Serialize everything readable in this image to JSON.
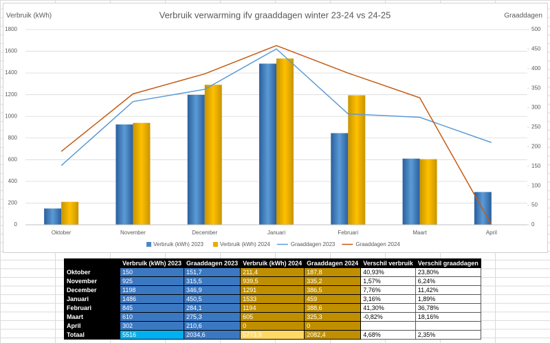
{
  "chart_data": {
    "type": "bar-line",
    "title": "Verbruik verwarming ifv graaddagen winter 23-24 vs 24-25",
    "y_label": "Verbruik (kWh)",
    "y2_label": "Graaddagen",
    "categories": [
      "Oktober",
      "November",
      "December",
      "Januari",
      "Februari",
      "Maart",
      "April"
    ],
    "series": [
      {
        "name": "Verbruik (kWh) 2023",
        "kind": "bar",
        "color": "#4a88c8",
        "values": [
          150,
          925,
          1198,
          1486,
          845,
          610,
          302
        ]
      },
      {
        "name": "Verbruik (kWh) 2024",
        "kind": "bar",
        "color": "#e8ad00",
        "values": [
          211.4,
          939.5,
          1291,
          1533,
          1194,
          605,
          0
        ]
      },
      {
        "name": "Graaddagen 2023",
        "kind": "line",
        "axis": "y2",
        "color": "#5b9bd5",
        "values": [
          151.7,
          315.5,
          346.9,
          450.5,
          284.1,
          275.3,
          210.6
        ]
      },
      {
        "name": "Graaddagen 2024",
        "kind": "line",
        "axis": "y2",
        "color": "#c55a11",
        "values": [
          187.8,
          335.2,
          386.5,
          459,
          388.6,
          325.3,
          0
        ]
      }
    ],
    "ylim": [
      0,
      1800
    ],
    "yticks": [
      0,
      200,
      400,
      600,
      800,
      1000,
      1200,
      1400,
      1600,
      1800
    ],
    "y2lim": [
      0,
      500
    ],
    "y2ticks": [
      0,
      50,
      100,
      150,
      200,
      250,
      300,
      350,
      400,
      450,
      500
    ],
    "grid": true
  },
  "table": {
    "columns": [
      "Verbruik (kWh) 2023",
      "Graaddagen 2023",
      "Verbruik (kWh) 2024",
      "Graaddagen 2024",
      "Verschil verbruik",
      "Verschil graaddagen"
    ],
    "rows": [
      {
        "label": "Oktober",
        "cells": [
          "150",
          "151,7",
          "211,4",
          "187,8",
          "40,93%",
          "23,80%"
        ]
      },
      {
        "label": "November",
        "cells": [
          "925",
          "315,5",
          "939,5",
          "335,2",
          "1,57%",
          "6,24%"
        ]
      },
      {
        "label": "December",
        "cells": [
          "1198",
          "346,9",
          "1291",
          "386,5",
          "7,76%",
          "11,42%"
        ]
      },
      {
        "label": "Januari",
        "cells": [
          "1486",
          "450,5",
          "1533",
          "459",
          "3,16%",
          "1,89%"
        ]
      },
      {
        "label": "Februari",
        "cells": [
          "845",
          "284,1",
          "1194",
          "388,6",
          "41,30%",
          "36,78%"
        ]
      },
      {
        "label": "Maart",
        "cells": [
          "610",
          "275,3",
          "605",
          "325,3",
          "-0,82%",
          "18,16%"
        ]
      },
      {
        "label": "April",
        "cells": [
          "302",
          "210,6",
          "0",
          "0"
        ]
      },
      {
        "label": "Totaal",
        "cells": [
          "5516",
          "2034,6",
          "5773,9",
          "2082,4",
          "4,68%",
          "2,35%"
        ]
      }
    ]
  }
}
